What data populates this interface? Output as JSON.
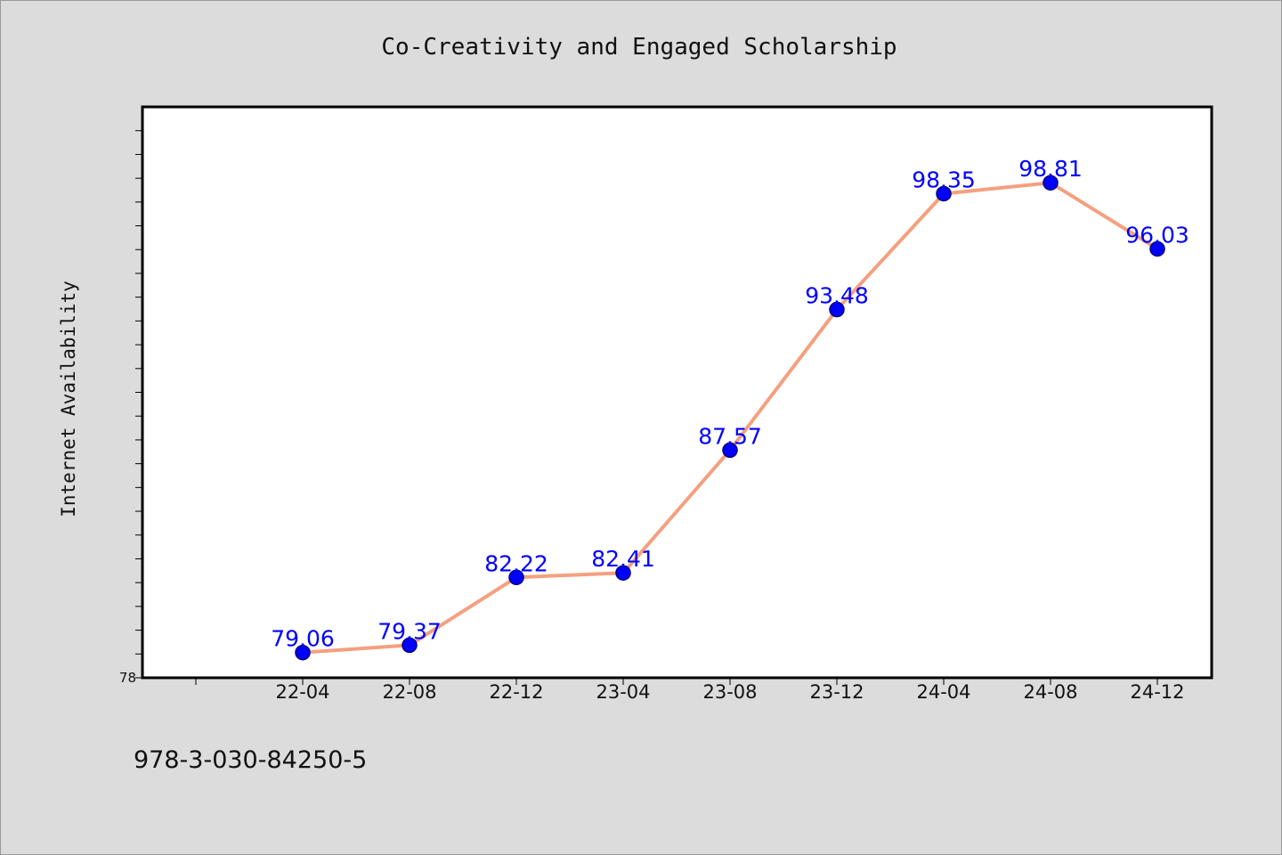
{
  "chart_data": {
    "type": "line",
    "title": "Co-Creativity and Engaged Scholarship",
    "xlabel": "",
    "ylabel": "Internet Availability",
    "categories": [
      "22-04",
      "22-08",
      "22-12",
      "23-04",
      "23-08",
      "23-12",
      "24-04",
      "24-08",
      "24-12"
    ],
    "series": [
      {
        "values": [
          79.06,
          79.37,
          82.22,
          82.41,
          87.57,
          93.48,
          98.35,
          98.81,
          96.03
        ],
        "labels": [
          "79.06",
          "79.37",
          "82.22",
          "82.41",
          "87.57",
          "93.48",
          "98.35",
          "98.81",
          "96.03"
        ]
      }
    ],
    "ylim": [
      78,
      102
    ],
    "ytick_label": "78",
    "grid": false,
    "colors": {
      "line": "#f4a07f",
      "marker": "#0000ff",
      "marker_edge": "#00007a",
      "data_label": "#0000ff",
      "plot_background": "#ffffff",
      "page_background": "#dcdcdc"
    }
  },
  "footer": {
    "isbn": "978-3-030-84250-5"
  }
}
